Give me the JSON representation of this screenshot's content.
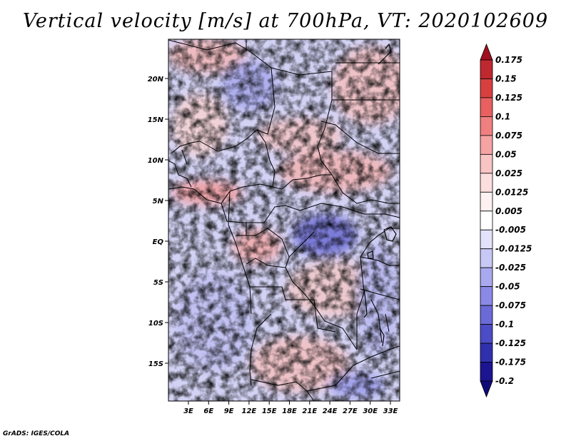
{
  "title": "Vertical velocity [m/s] at 700hPa, VT: 2020102609",
  "credit": "GrADS: IGES/COLA",
  "map": {
    "lat_labels": [
      "20N",
      "15N",
      "10N",
      "5N",
      "EQ",
      "5S",
      "10S",
      "15S"
    ],
    "lon_labels": [
      "3E",
      "6E",
      "9E",
      "12E",
      "15E",
      "18E",
      "21E",
      "24E",
      "27E",
      "30E",
      "33E"
    ]
  },
  "colorbar": {
    "labels": [
      "0.175",
      "0.15",
      "0.125",
      "0.1",
      "0.075",
      "0.05",
      "0.025",
      "0.0125",
      "0.005",
      "-0.005",
      "-0.0125",
      "-0.025",
      "-0.05",
      "-0.075",
      "-0.1",
      "-0.125",
      "-0.175",
      "-0.2"
    ],
    "colors": [
      "#a01020",
      "#c02830",
      "#d84040",
      "#e86060",
      "#f08080",
      "#f5a3a3",
      "#f9c4c4",
      "#fcdede",
      "#fef1f1",
      "#ffffff",
      "#e2e2fb",
      "#c8c8f6",
      "#a9a9ef",
      "#8a8ae6",
      "#6a6ad8",
      "#4c4cc6",
      "#3030ae",
      "#1c1490",
      "#100a78"
    ]
  }
}
